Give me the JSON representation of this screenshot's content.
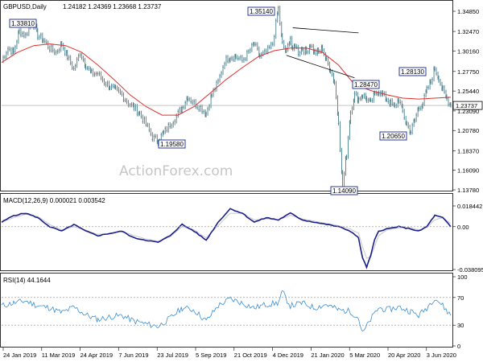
{
  "header": {
    "symbol": "GBPUSD,Daily",
    "ohlc": "1.24182 1.24369 1.23668 1.23737"
  },
  "watermark": "ActionForex.com",
  "colors": {
    "price": "#4a7f8c",
    "ma": "#e03030",
    "macd_line": "#1a1f8c",
    "macd_signal": "#c8c8c8",
    "rsi": "#3a8fd6",
    "label_border": "#2a3aa0",
    "grid": "#e3e3e3"
  },
  "chart_data": [
    {
      "panel": "price",
      "type": "candlestick",
      "title": "GBPUSD,Daily 1.24182 1.24369 1.23668 1.23737",
      "x_labels": [
        "24 Jan 2019",
        "11 Mar 2019",
        "24 Apr 2019",
        "7 Jun 2019",
        "23 Jul 2019",
        "5 Sep 2019",
        "21 Oct 2019",
        "4 Dec 2019",
        "21 Jan 2020",
        "5 Mar 2020",
        "20 Apr 2020",
        "3 Jun 2020"
      ],
      "y_ticks": [
        "1.34850",
        "1.32470",
        "1.30160",
        "1.27750",
        "1.25440",
        "1.23090",
        "1.20780",
        "1.18370",
        "1.16090",
        "1.13780"
      ],
      "y_values": [
        1.3485,
        1.3247,
        1.3016,
        1.2775,
        1.2544,
        1.2309,
        1.2078,
        1.1837,
        1.1609,
        1.1378
      ],
      "ylim": [
        1.1378,
        1.3485
      ],
      "current": "1.23737",
      "current_value": 1.23737,
      "series": [
        {
          "x": [
            0,
            8,
            15,
            22,
            30,
            38,
            45,
            52,
            60,
            68,
            75,
            82,
            90,
            98,
            105,
            112,
            120,
            128,
            135,
            142,
            150,
            158,
            165,
            172,
            180,
            188,
            195,
            202,
            210,
            218,
            225,
            232,
            240,
            248,
            255,
            262,
            270,
            278,
            285,
            292,
            300,
            308,
            315,
            322,
            330,
            338,
            345,
            350,
            355,
            360,
            363,
            366,
            370,
            375,
            380,
            385,
            390,
            395,
            400,
            405,
            410,
            415,
            420,
            425,
            430,
            435,
            440,
            445
          ],
          "values": [
            1.29,
            1.305,
            1.3,
            1.325,
            1.32,
            1.338,
            1.32,
            1.315,
            1.305,
            1.3,
            1.31,
            1.295,
            1.28,
            1.3,
            1.285,
            1.275,
            1.275,
            1.265,
            1.26,
            1.255,
            1.25,
            1.24,
            1.235,
            1.228,
            1.215,
            1.2,
            1.196,
            1.205,
            1.215,
            1.225,
            1.235,
            1.248,
            1.24,
            1.235,
            1.228,
            1.25,
            1.265,
            1.29,
            1.295,
            1.295,
            1.29,
            1.3,
            1.31,
            1.295,
            1.3,
            1.31,
            1.3514,
            1.31,
            1.3,
            1.318,
            1.3,
            1.31,
            1.3,
            1.305,
            1.3,
            1.31,
            1.3,
            1.3,
            1.305,
            1.29,
            1.28,
            1.2647,
            1.22,
            1.1409,
            1.18,
            1.23,
            1.25,
            1.245
          ]
        }
      ]
    },
    {
      "panel": "price-ma",
      "type": "line",
      "x": [
        0,
        20,
        40,
        60,
        80,
        100,
        120,
        140,
        160,
        180,
        200,
        220,
        240,
        260,
        280,
        300,
        320,
        340,
        360,
        380,
        400,
        420,
        440,
        460,
        480,
        500,
        520,
        540,
        560
      ],
      "values": [
        1.288,
        1.3,
        1.308,
        1.31,
        1.308,
        1.3,
        1.285,
        1.268,
        1.25,
        1.236,
        1.226,
        1.226,
        1.236,
        1.252,
        1.268,
        1.282,
        1.295,
        1.302,
        1.305,
        1.305,
        1.3,
        1.285,
        1.262,
        1.255,
        1.25,
        1.246,
        1.245,
        1.246,
        1.247
      ]
    },
    {
      "panel": "price-rest",
      "type": "line",
      "x": [
        450,
        455,
        460,
        465,
        470,
        475,
        480,
        485,
        490,
        495,
        500,
        505,
        510,
        515,
        520,
        525,
        530,
        535,
        540,
        545,
        550,
        555,
        560
      ],
      "values": [
        1.25,
        1.245,
        1.24,
        1.25,
        1.255,
        1.25,
        1.245,
        1.24,
        1.235,
        1.245,
        1.23,
        1.215,
        1.2065,
        1.22,
        1.235,
        1.24,
        1.255,
        1.265,
        1.2813,
        1.27,
        1.255,
        1.245,
        1.23737
      ]
    },
    {
      "panel": "macd",
      "type": "line",
      "title": "MACD(12,26,9) 0.000021 0.003542",
      "y_ticks": [
        "0.018442",
        "0.00",
        "-0.038095"
      ],
      "ylim": [
        -0.038095,
        0.018442
      ],
      "x": [
        0,
        15,
        30,
        45,
        60,
        75,
        90,
        105,
        120,
        135,
        150,
        165,
        180,
        195,
        210,
        225,
        240,
        255,
        270,
        285,
        300,
        315,
        330,
        345,
        360,
        375,
        390,
        405,
        420,
        435,
        445,
        450,
        455,
        460,
        465,
        470,
        480,
        495,
        510,
        520,
        530,
        540,
        550,
        560
      ],
      "series": [
        {
          "name": "MACD",
          "values": [
            0.004,
            0.01,
            0.012,
            0.008,
            0.0,
            -0.004,
            0.002,
            -0.004,
            -0.008,
            -0.006,
            -0.004,
            -0.01,
            -0.012,
            -0.014,
            -0.008,
            0.002,
            -0.004,
            -0.012,
            0.004,
            0.016,
            0.012,
            0.004,
            0.008,
            0.006,
            0.012,
            0.006,
            0.004,
            0.002,
            0.0,
            -0.004,
            -0.01,
            -0.028,
            -0.036,
            -0.026,
            -0.012,
            -0.004,
            -0.002,
            0.0,
            -0.002,
            -0.004,
            0.0,
            0.01,
            0.008,
            0.0
          ]
        },
        {
          "name": "Signal",
          "values": [
            0.004,
            0.008,
            0.011,
            0.009,
            0.002,
            -0.003,
            0.0,
            -0.003,
            -0.007,
            -0.006,
            -0.004,
            -0.008,
            -0.011,
            -0.013,
            -0.009,
            0.0,
            -0.003,
            -0.01,
            0.001,
            0.012,
            0.012,
            0.006,
            0.007,
            0.006,
            0.01,
            0.007,
            0.005,
            0.003,
            0.001,
            -0.002,
            -0.006,
            -0.018,
            -0.028,
            -0.027,
            -0.018,
            -0.008,
            -0.003,
            -0.001,
            -0.001,
            -0.003,
            -0.001,
            0.006,
            0.008,
            0.003
          ]
        }
      ]
    },
    {
      "panel": "rsi",
      "type": "line",
      "title": "RSI(14) 44.1644",
      "y_ticks": [
        "100",
        "70",
        "30",
        "0"
      ],
      "ylim": [
        0,
        100
      ],
      "x": [
        0,
        15,
        30,
        45,
        60,
        75,
        90,
        105,
        120,
        135,
        150,
        165,
        180,
        195,
        210,
        225,
        240,
        255,
        270,
        285,
        300,
        315,
        330,
        345,
        350,
        360,
        375,
        390,
        405,
        420,
        435,
        445,
        450,
        460,
        470,
        480,
        495,
        510,
        520,
        530,
        540,
        550,
        560
      ],
      "values": [
        58,
        62,
        65,
        58,
        55,
        48,
        56,
        45,
        38,
        42,
        44,
        36,
        32,
        28,
        40,
        55,
        52,
        36,
        58,
        68,
        62,
        55,
        60,
        62,
        78,
        58,
        62,
        55,
        60,
        52,
        50,
        40,
        18,
        38,
        55,
        52,
        56,
        50,
        44,
        55,
        70,
        58,
        44
      ]
    }
  ],
  "price_labels": [
    "1.33810",
    "1.35140",
    "1.19580",
    "1.28470",
    "1.14090",
    "1.28130",
    "1.20650"
  ]
}
